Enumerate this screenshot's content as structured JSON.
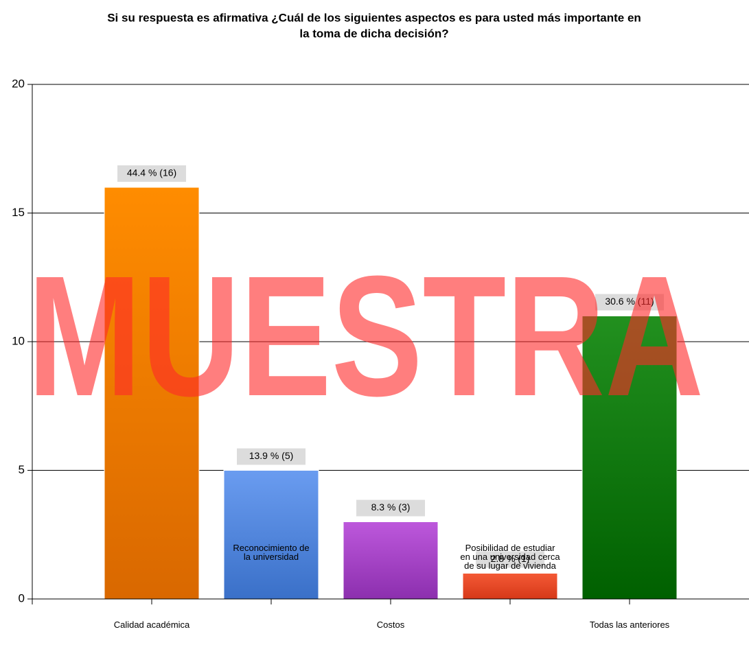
{
  "chart_data": {
    "type": "bar",
    "title": [
      "Si su respuesta es afirmativa ¿Cuál de los siguientes aspectos es para usted más importante en",
      "la toma de dicha  decisión?"
    ],
    "categories": [
      [
        "Calidad académica"
      ],
      [
        "Reconocimiento de",
        "la universidad"
      ],
      [
        "Costos"
      ],
      [
        "Posibilidad de estudiar",
        "en una universidad cerca",
        "de su lugar de vivienda"
      ],
      [
        "Todas las anteriores"
      ]
    ],
    "values": [
      16,
      5,
      3,
      1,
      11
    ],
    "value_labels": [
      "44.4 % (16)",
      "13.9 % (5)",
      "8.3 % (3)",
      "2.8 % (1)",
      "30.6 % (11)"
    ],
    "colors": [
      [
        "#ff8c00",
        "#d96800"
      ],
      [
        "#6a9cf0",
        "#3a70c8"
      ],
      [
        "#bd58dc",
        "#8c2fae"
      ],
      [
        "#f45a36",
        "#d63818"
      ],
      [
        "#22901f",
        "#006000"
      ]
    ],
    "ylim": [
      0,
      20
    ],
    "yticks": [
      0,
      5,
      10,
      15,
      20
    ],
    "grid": true,
    "watermark": "MUESTRA"
  }
}
